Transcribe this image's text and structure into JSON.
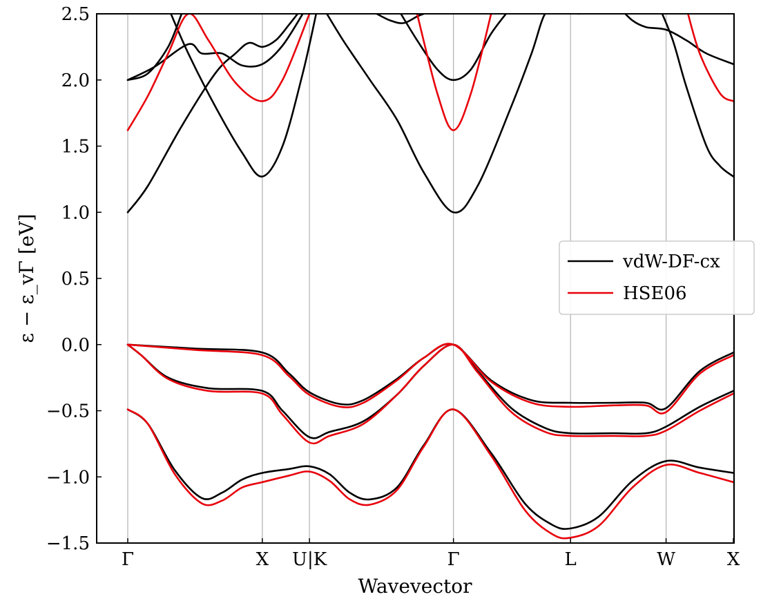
{
  "chart_data": {
    "type": "line",
    "title": "",
    "xlabel": "Wavevector",
    "ylabel": "ε − ε_vΓ [eV]",
    "ylim": [
      -1.5,
      2.5
    ],
    "yticks": [
      "2.5",
      "2.0",
      "1.5",
      "1.0",
      "0.5",
      "0.0",
      "−0.5",
      "−1.0",
      "−1.5"
    ],
    "ytick_values": [
      2.5,
      2.0,
      1.5,
      1.0,
      0.5,
      0.0,
      -0.5,
      -1.0,
      -1.5
    ],
    "kpath_labels": [
      "Γ",
      "X",
      "U|K",
      "Γ",
      "L",
      "W",
      "X"
    ],
    "kpath_positions": [
      0,
      1,
      1.35,
      2.42,
      3.29,
      4.0,
      4.5
    ],
    "legend": {
      "position": "center-right",
      "entries": [
        "vdW-DF-cx",
        "HSE06"
      ]
    },
    "grid": "vertical lines at high-symmetry points",
    "series": [
      {
        "name": "vdW-DF-cx",
        "color": "#000000",
        "bands": [
          [
            [
              0,
              -0.49
            ],
            [
              0.15,
              -0.6
            ],
            [
              0.35,
              -0.95
            ],
            [
              0.55,
              -1.16
            ],
            [
              0.7,
              -1.12
            ],
            [
              0.85,
              -1.02
            ],
            [
              1,
              -0.97
            ],
            [
              1.2,
              -0.94
            ],
            [
              1.35,
              -0.92
            ],
            [
              1.5,
              -0.98
            ],
            [
              1.65,
              -1.12
            ],
            [
              1.8,
              -1.17
            ],
            [
              2,
              -1.08
            ],
            [
              2.2,
              -0.76
            ],
            [
              2.42,
              -0.49
            ],
            [
              2.7,
              -0.82
            ],
            [
              2.95,
              -1.2
            ],
            [
              3.15,
              -1.36
            ],
            [
              3.29,
              -1.39
            ],
            [
              3.5,
              -1.3
            ],
            [
              3.75,
              -1.03
            ],
            [
              4,
              -0.88
            ],
            [
              4.25,
              -0.93
            ],
            [
              4.5,
              -0.97
            ]
          ],
          [
            [
              0,
              0
            ],
            [
              0.1,
              -0.08
            ],
            [
              0.3,
              -0.25
            ],
            [
              0.6,
              -0.33
            ],
            [
              1,
              -0.35
            ],
            [
              1.15,
              -0.5
            ],
            [
              1.35,
              -0.7
            ],
            [
              1.5,
              -0.66
            ],
            [
              1.75,
              -0.58
            ],
            [
              2,
              -0.38
            ],
            [
              2.2,
              -0.16
            ],
            [
              2.42,
              0
            ],
            [
              2.6,
              -0.2
            ],
            [
              2.85,
              -0.48
            ],
            [
              3.1,
              -0.63
            ],
            [
              3.29,
              -0.67
            ],
            [
              3.6,
              -0.67
            ],
            [
              3.85,
              -0.67
            ],
            [
              4,
              -0.62
            ],
            [
              4.25,
              -0.47
            ],
            [
              4.5,
              -0.35
            ]
          ],
          [
            [
              0,
              0
            ],
            [
              0.5,
              -0.03
            ],
            [
              1,
              -0.06
            ],
            [
              1.2,
              -0.22
            ],
            [
              1.35,
              -0.36
            ],
            [
              1.58,
              -0.45
            ],
            [
              1.75,
              -0.42
            ],
            [
              2,
              -0.26
            ],
            [
              2.2,
              -0.1
            ],
            [
              2.42,
              0
            ],
            [
              2.7,
              -0.27
            ],
            [
              3,
              -0.42
            ],
            [
              3.29,
              -0.44
            ],
            [
              3.6,
              -0.44
            ],
            [
              3.85,
              -0.44
            ],
            [
              4,
              -0.48
            ],
            [
              4.25,
              -0.2
            ],
            [
              4.5,
              -0.06
            ]
          ],
          [
            [
              0,
              1.0
            ],
            [
              0.15,
              1.2
            ],
            [
              0.4,
              1.65
            ],
            [
              0.65,
              2.05
            ],
            [
              0.8,
              2.2
            ],
            [
              0.9,
              2.28
            ],
            [
              1,
              2.25
            ],
            [
              1.1,
              2.3
            ],
            [
              1.2,
              2.42
            ],
            [
              1.3,
              2.55
            ]
          ],
          [
            [
              1.45,
              2.55
            ],
            [
              1.6,
              2.3
            ],
            [
              1.8,
              2.0
            ],
            [
              2,
              1.7
            ],
            [
              2.2,
              1.3
            ],
            [
              2.42,
              1.0
            ],
            [
              2.6,
              1.2
            ],
            [
              2.85,
              1.8
            ],
            [
              3.0,
              2.2
            ],
            [
              3.1,
              2.5
            ],
            [
              3.2,
              2.55
            ]
          ],
          [
            [
              0,
              2.0
            ],
            [
              0.2,
              2.1
            ],
            [
              0.45,
              2.27
            ],
            [
              0.55,
              2.2
            ],
            [
              0.7,
              2.2
            ],
            [
              0.85,
              2.11
            ],
            [
              1,
              2.12
            ],
            [
              1.15,
              2.26
            ],
            [
              1.3,
              2.5
            ]
          ],
          [
            [
              0,
              2.0
            ],
            [
              0.15,
              2.05
            ],
            [
              0.3,
              2.25
            ],
            [
              0.4,
              2.5
            ]
          ],
          [
            [
              0.3,
              2.55
            ],
            [
              0.45,
              2.2
            ],
            [
              0.65,
              1.8
            ],
            [
              0.85,
              1.45
            ],
            [
              1,
              1.27
            ],
            [
              1.15,
              1.5
            ],
            [
              1.3,
              2.05
            ],
            [
              1.4,
              2.5
            ]
          ],
          [
            [
              2.0,
              2.55
            ],
            [
              2.15,
              2.3
            ],
            [
              2.3,
              2.08
            ],
            [
              2.42,
              2.0
            ],
            [
              2.55,
              2.08
            ],
            [
              2.7,
              2.35
            ],
            [
              2.85,
              2.55
            ]
          ],
          [
            [
              1.85,
              2.5
            ],
            [
              1.95,
              2.45
            ],
            [
              2.05,
              2.43
            ],
            [
              2.15,
              2.48
            ],
            [
              2.2,
              2.5
            ]
          ],
          [
            [
              3.65,
              2.55
            ],
            [
              3.75,
              2.45
            ],
            [
              3.85,
              2.4
            ],
            [
              4,
              2.38
            ],
            [
              4.15,
              2.3
            ],
            [
              4.3,
              2.2
            ],
            [
              4.5,
              2.12
            ]
          ],
          [
            [
              3.95,
              2.55
            ],
            [
              4.05,
              2.3
            ],
            [
              4.15,
              1.95
            ],
            [
              4.3,
              1.5
            ],
            [
              4.4,
              1.35
            ],
            [
              4.5,
              1.27
            ]
          ],
          [
            [
              3.2,
              2.55
            ],
            [
              3.35,
              2.5
            ]
          ]
        ]
      },
      {
        "name": "HSE06",
        "color": "#e8000b",
        "bands": [
          [
            [
              0,
              -0.49
            ],
            [
              0.15,
              -0.6
            ],
            [
              0.35,
              -0.98
            ],
            [
              0.55,
              -1.2
            ],
            [
              0.7,
              -1.18
            ],
            [
              0.85,
              -1.08
            ],
            [
              1,
              -1.04
            ],
            [
              1.2,
              -0.99
            ],
            [
              1.35,
              -0.96
            ],
            [
              1.5,
              -1.03
            ],
            [
              1.65,
              -1.17
            ],
            [
              1.8,
              -1.21
            ],
            [
              2,
              -1.1
            ],
            [
              2.2,
              -0.77
            ],
            [
              2.42,
              -0.49
            ],
            [
              2.7,
              -0.84
            ],
            [
              2.95,
              -1.25
            ],
            [
              3.15,
              -1.43
            ],
            [
              3.29,
              -1.46
            ],
            [
              3.5,
              -1.37
            ],
            [
              3.75,
              -1.08
            ],
            [
              4,
              -0.91
            ],
            [
              4.25,
              -0.97
            ],
            [
              4.5,
              -1.04
            ]
          ],
          [
            [
              0,
              0
            ],
            [
              0.1,
              -0.08
            ],
            [
              0.3,
              -0.26
            ],
            [
              0.6,
              -0.35
            ],
            [
              1,
              -0.37
            ],
            [
              1.15,
              -0.53
            ],
            [
              1.35,
              -0.74
            ],
            [
              1.5,
              -0.69
            ],
            [
              1.75,
              -0.6
            ],
            [
              2,
              -0.38
            ],
            [
              2.2,
              -0.16
            ],
            [
              2.42,
              0
            ],
            [
              2.6,
              -0.21
            ],
            [
              2.85,
              -0.51
            ],
            [
              3.1,
              -0.66
            ],
            [
              3.29,
              -0.69
            ],
            [
              3.6,
              -0.69
            ],
            [
              3.85,
              -0.69
            ],
            [
              4,
              -0.65
            ],
            [
              4.25,
              -0.5
            ],
            [
              4.5,
              -0.37
            ]
          ],
          [
            [
              0,
              0
            ],
            [
              0.5,
              -0.04
            ],
            [
              1,
              -0.08
            ],
            [
              1.2,
              -0.24
            ],
            [
              1.35,
              -0.38
            ],
            [
              1.58,
              -0.47
            ],
            [
              1.75,
              -0.44
            ],
            [
              2,
              -0.27
            ],
            [
              2.2,
              -0.1
            ],
            [
              2.42,
              0
            ],
            [
              2.7,
              -0.28
            ],
            [
              3,
              -0.44
            ],
            [
              3.29,
              -0.47
            ],
            [
              3.6,
              -0.46
            ],
            [
              3.85,
              -0.46
            ],
            [
              4,
              -0.51
            ],
            [
              4.25,
              -0.22
            ],
            [
              4.5,
              -0.08
            ]
          ],
          [
            [
              0,
              1.62
            ],
            [
              0.15,
              1.88
            ],
            [
              0.3,
              2.2
            ],
            [
              0.45,
              2.5
            ],
            [
              0.6,
              2.3
            ],
            [
              0.8,
              1.98
            ],
            [
              1,
              1.84
            ],
            [
              1.15,
              2.0
            ],
            [
              1.35,
              2.5
            ]
          ],
          [
            [
              2.15,
              2.5
            ],
            [
              2.3,
              1.9
            ],
            [
              2.42,
              1.62
            ],
            [
              2.55,
              1.9
            ],
            [
              2.7,
              2.5
            ]
          ],
          [
            [
              4.15,
              2.55
            ],
            [
              4.25,
              2.2
            ],
            [
              4.4,
              1.9
            ],
            [
              4.5,
              1.84
            ]
          ]
        ]
      }
    ]
  }
}
